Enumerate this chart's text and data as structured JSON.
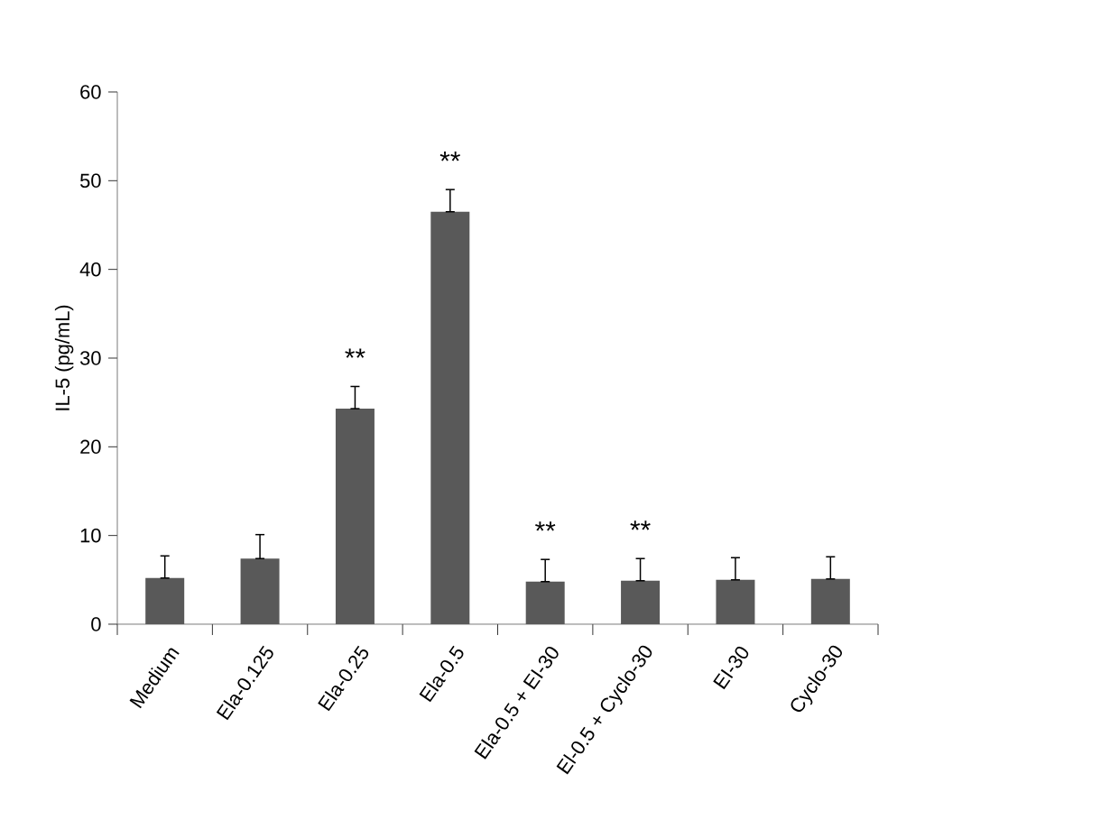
{
  "chart_data": {
    "type": "bar",
    "ylabel": "IL-5 (pg/mL)",
    "categories": [
      "Medium",
      "Ela-0.125",
      "Ela-0.25",
      "Ela-0.5",
      "Ela-0.5 + EI-30",
      "El-0.5 + Cyclo-30",
      "EI-30",
      "Cyclo-30"
    ],
    "values": [
      5.2,
      7.4,
      24.3,
      46.5,
      4.8,
      4.9,
      5.0,
      5.1
    ],
    "errors": [
      [
        5.2,
        7.7
      ],
      [
        7.4,
        10.1
      ],
      [
        24.3,
        26.8
      ],
      [
        46.5,
        49.0
      ],
      [
        4.8,
        7.3
      ],
      [
        4.9,
        7.4
      ],
      [
        5.0,
        7.5
      ],
      [
        5.1,
        7.6
      ]
    ],
    "color": "#595959",
    "ylim": [
      0,
      60
    ],
    "yticks": [
      0,
      10,
      20,
      30,
      40,
      50,
      60
    ],
    "grid": false,
    "annotations": [
      {
        "text": "**",
        "x": "Ela-0.25",
        "y": 26.8
      },
      {
        "text": "**",
        "x": "Ela-0.5",
        "y": 49.0
      },
      {
        "text": "**",
        "x": "Ela-0.5 + EI-30",
        "y": 7.3
      },
      {
        "text": "**",
        "x": "El-0.5 + Cyclo-30",
        "y": 7.4
      }
    ]
  }
}
